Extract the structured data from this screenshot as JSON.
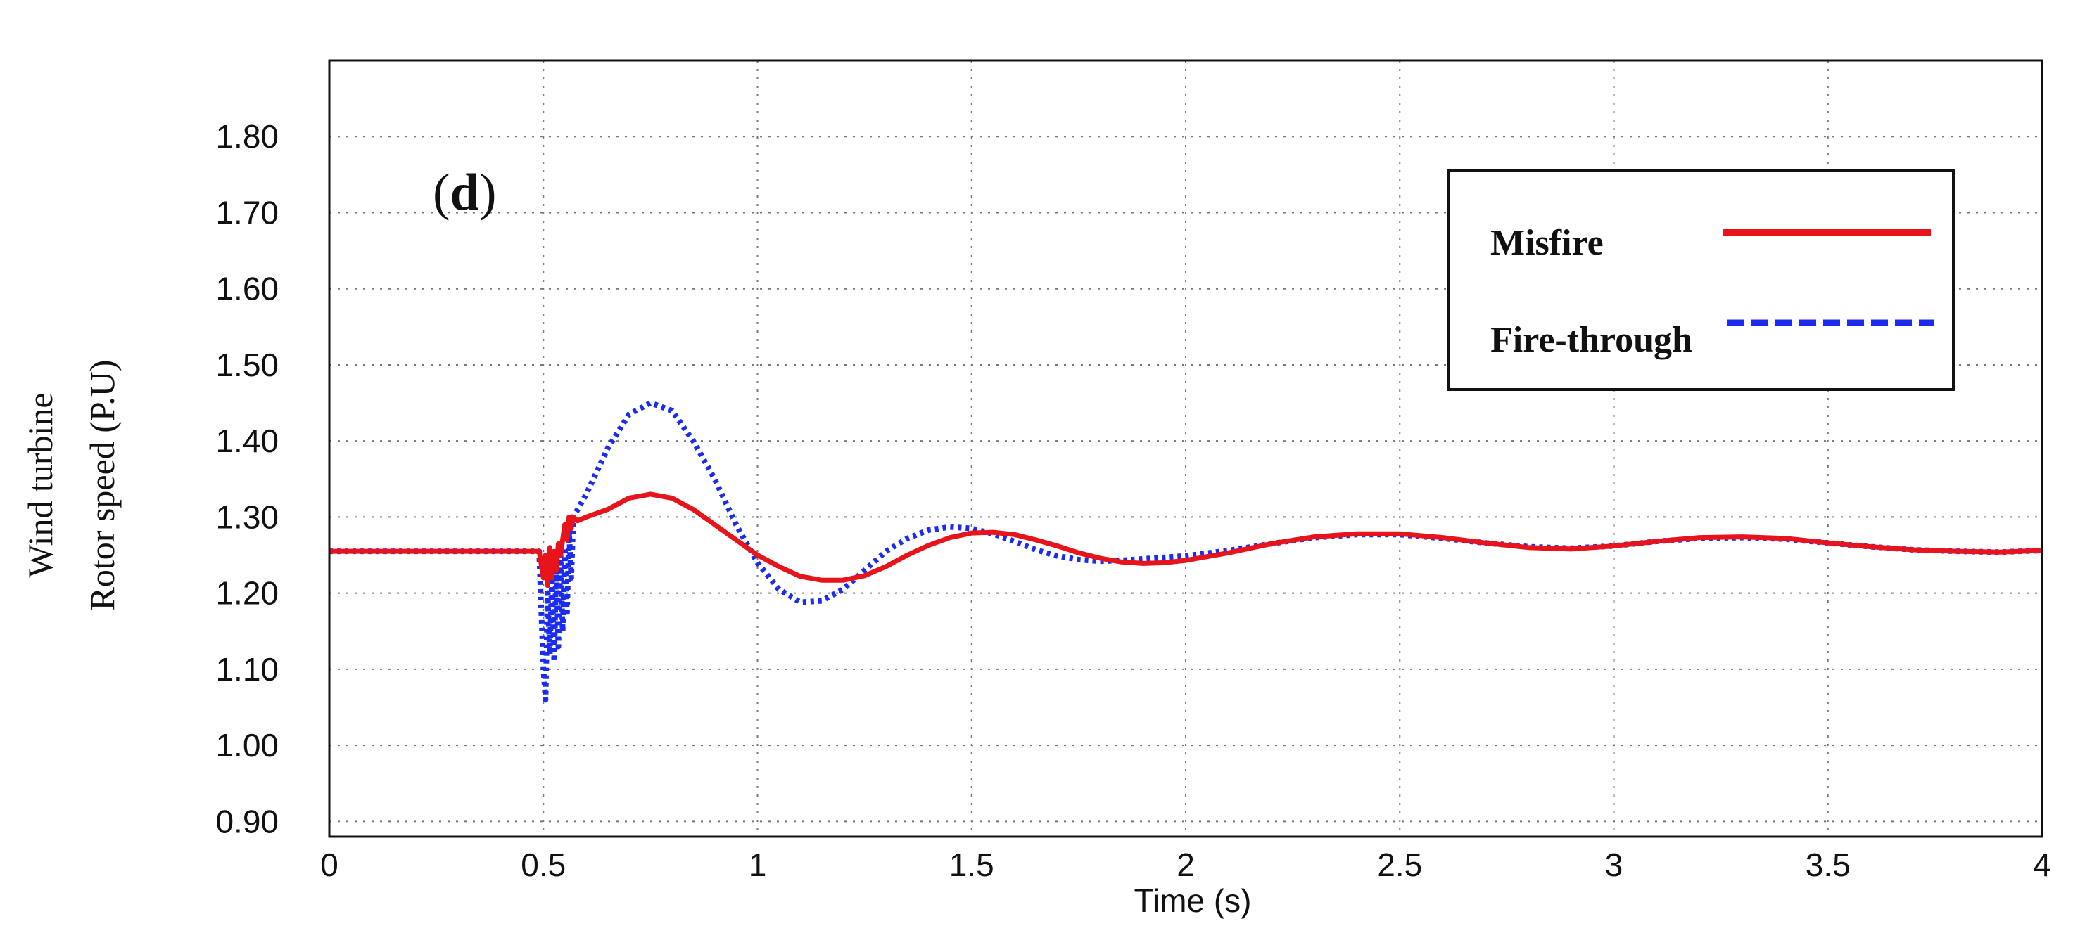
{
  "chart_data": {
    "type": "line",
    "panel_label_open": "(",
    "panel_label_bold": "d",
    "panel_label_close": ")",
    "xlabel": "Time (s)",
    "ylabel_line1": "Wind turbine",
    "ylabel_line2": "Rotor speed (P.U)",
    "xlim": [
      0,
      4
    ],
    "ylim": [
      0.88,
      1.9
    ],
    "x_ticks": [
      0,
      0.5,
      1,
      1.5,
      2,
      2.5,
      3,
      3.5,
      4
    ],
    "x_tick_labels": [
      "0",
      "0.5",
      "1",
      "1.5",
      "2",
      "2.5",
      "3",
      "3.5",
      "4"
    ],
    "y_ticks": [
      0.9,
      1.0,
      1.1,
      1.2,
      1.3,
      1.4,
      1.5,
      1.6,
      1.7,
      1.8
    ],
    "y_tick_labels": [
      "0.90",
      "1.00",
      "1.10",
      "1.20",
      "1.30",
      "1.40",
      "1.50",
      "1.60",
      "1.70",
      "1.80"
    ],
    "grid": true,
    "legend_position": "top-right",
    "colors": {
      "misfire": "#e8141b",
      "fire_through": "#1a2cf0"
    },
    "series": [
      {
        "name": "Misfire",
        "style": "solid",
        "x": [
          0,
          0.1,
          0.2,
          0.3,
          0.4,
          0.49,
          0.5,
          0.505,
          0.51,
          0.515,
          0.52,
          0.525,
          0.53,
          0.535,
          0.54,
          0.545,
          0.55,
          0.555,
          0.56,
          0.565,
          0.57,
          0.58,
          0.6,
          0.65,
          0.7,
          0.75,
          0.8,
          0.85,
          0.9,
          0.95,
          1.0,
          1.05,
          1.1,
          1.15,
          1.2,
          1.25,
          1.3,
          1.35,
          1.4,
          1.45,
          1.5,
          1.55,
          1.6,
          1.65,
          1.7,
          1.75,
          1.8,
          1.85,
          1.9,
          1.95,
          2.0,
          2.1,
          2.2,
          2.3,
          2.4,
          2.5,
          2.6,
          2.7,
          2.8,
          2.9,
          3.0,
          3.1,
          3.2,
          3.3,
          3.4,
          3.5,
          3.6,
          3.7,
          3.8,
          3.9,
          4.0
        ],
        "y": [
          1.255,
          1.255,
          1.255,
          1.255,
          1.255,
          1.255,
          1.22,
          1.25,
          1.21,
          1.26,
          1.22,
          1.255,
          1.23,
          1.265,
          1.25,
          1.27,
          1.29,
          1.27,
          1.3,
          1.285,
          1.3,
          1.295,
          1.3,
          1.31,
          1.325,
          1.33,
          1.325,
          1.31,
          1.29,
          1.27,
          1.25,
          1.235,
          1.222,
          1.217,
          1.217,
          1.223,
          1.235,
          1.25,
          1.263,
          1.273,
          1.279,
          1.28,
          1.277,
          1.27,
          1.262,
          1.253,
          1.246,
          1.241,
          1.239,
          1.24,
          1.243,
          1.253,
          1.265,
          1.274,
          1.278,
          1.278,
          1.273,
          1.266,
          1.26,
          1.258,
          1.262,
          1.268,
          1.273,
          1.274,
          1.272,
          1.266,
          1.261,
          1.257,
          1.255,
          1.254,
          1.256
        ]
      },
      {
        "name": "Fire-through",
        "style": "dotted",
        "x": [
          0,
          0.1,
          0.2,
          0.3,
          0.4,
          0.49,
          0.5,
          0.505,
          0.51,
          0.515,
          0.52,
          0.525,
          0.53,
          0.535,
          0.54,
          0.545,
          0.55,
          0.555,
          0.56,
          0.565,
          0.57,
          0.58,
          0.6,
          0.65,
          0.7,
          0.75,
          0.8,
          0.85,
          0.9,
          0.95,
          1.0,
          1.05,
          1.1,
          1.15,
          1.2,
          1.25,
          1.3,
          1.35,
          1.4,
          1.45,
          1.5,
          1.55,
          1.6,
          1.65,
          1.7,
          1.75,
          1.8,
          1.85,
          1.9,
          1.95,
          2.0,
          2.1,
          2.2,
          2.3,
          2.4,
          2.5,
          2.6,
          2.7,
          2.8,
          2.9,
          3.0,
          3.1,
          3.2,
          3.3,
          3.4,
          3.5,
          3.6,
          3.7,
          3.8,
          3.9,
          4.0
        ],
        "y": [
          1.255,
          1.255,
          1.255,
          1.255,
          1.255,
          1.255,
          1.1,
          1.06,
          1.2,
          1.12,
          1.22,
          1.11,
          1.24,
          1.13,
          1.25,
          1.15,
          1.26,
          1.17,
          1.28,
          1.22,
          1.3,
          1.31,
          1.33,
          1.39,
          1.435,
          1.45,
          1.44,
          1.4,
          1.35,
          1.29,
          1.24,
          1.205,
          1.188,
          1.19,
          1.205,
          1.23,
          1.255,
          1.272,
          1.283,
          1.287,
          1.285,
          1.278,
          1.268,
          1.257,
          1.249,
          1.244,
          1.242,
          1.243,
          1.245,
          1.247,
          1.249,
          1.256,
          1.265,
          1.273,
          1.277,
          1.277,
          1.272,
          1.266,
          1.261,
          1.259,
          1.262,
          1.268,
          1.272,
          1.273,
          1.271,
          1.266,
          1.261,
          1.257,
          1.255,
          1.254,
          1.256
        ]
      }
    ]
  }
}
